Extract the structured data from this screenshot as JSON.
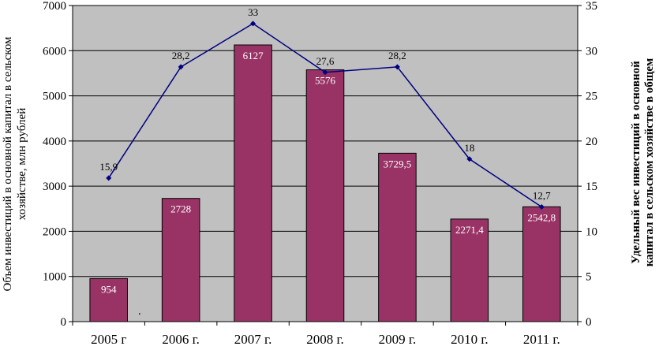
{
  "chart_data": {
    "type": "bar+line",
    "categories": [
      "2005 г",
      "2006 г.",
      "2007 г.",
      "2008 г.",
      "2009 г.",
      "2010 г.",
      "2011 г."
    ],
    "bar_series": {
      "values": [
        954,
        2728,
        6127,
        5576,
        3729.5,
        2271.4,
        2542.8
      ],
      "labels": [
        "954",
        "2728",
        "6127",
        "5576",
        "3729,5",
        "2271,4",
        "2542,8"
      ],
      "color": "#993366"
    },
    "line_series": {
      "values": [
        15.9,
        28.2,
        33,
        27.6,
        28.2,
        18,
        12.7
      ],
      "labels": [
        "15,9",
        "28,2",
        "33",
        "27,6",
        "28,2",
        "18",
        "12,7"
      ],
      "color": "#000080"
    },
    "y_left": {
      "label_lines": [
        "Объем инвестиций в основной капитал в сельском",
        "хозяйстве, млн рублей"
      ],
      "lim": [
        0,
        7000
      ],
      "ticks": [
        "0",
        "1000",
        "2000",
        "3000",
        "4000",
        "5000",
        "6000",
        "7000"
      ]
    },
    "y_right": {
      "label_lines": [
        "Удельный вес инвестиций в основной",
        "капитал в сельском хозяйстве в общем"
      ],
      "lim": [
        0,
        35
      ],
      "ticks": [
        "0",
        "5",
        "10",
        "15",
        "20",
        "25",
        "30",
        "35"
      ]
    },
    "stray_mark": ".",
    "plot_background": "#c0c0c0",
    "grid": "horizontal"
  }
}
